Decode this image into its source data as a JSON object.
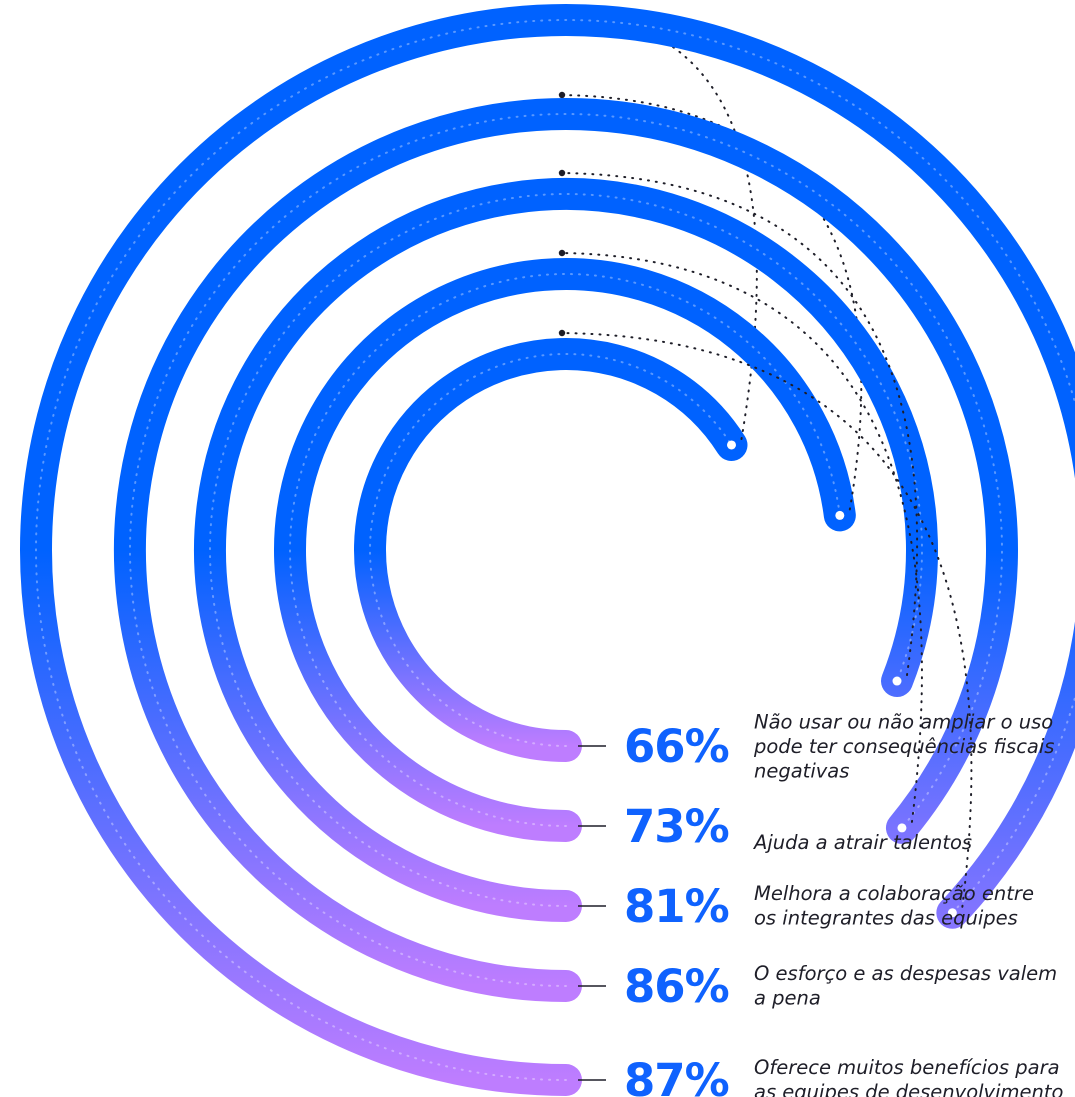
{
  "chart_data": {
    "type": "radial_bar",
    "unit": "%",
    "categories": [
      "Não usar ou não ampliar o uso pode ter consequências fiscais negativas",
      "Ajuda a atrair talentos",
      "Melhora a colaboração entre os integrantes das equipes",
      "O esforço e as despesas valem a pena",
      "Oferece muitos benefícios para as equipes de desenvolvimento"
    ],
    "values": [
      66,
      73,
      81,
      86,
      87
    ],
    "value_labels": [
      "66%",
      "73%",
      "81%",
      "86%",
      "87%"
    ],
    "descriptions": [
      [
        "Não usar ou não ampliar o uso",
        "pode ter consequências fiscais",
        "negativas"
      ],
      [
        "Ajuda a atrair talentos"
      ],
      [
        "Melhora a colaboração entre",
        "os integrantes das equipes"
      ],
      [
        "O esforço e as despesas valem",
        "a pena"
      ],
      [
        "Oferece muitos benefícios para",
        "as equipes de desenvolvimento"
      ]
    ],
    "legend": "none",
    "grid": false
  },
  "colors": {
    "bar_start": "#0062ff",
    "bar_end": "#be7dff",
    "value_text": "#0f62fe",
    "leader_line": "#1e1e28",
    "dots": "#1e1e28"
  }
}
